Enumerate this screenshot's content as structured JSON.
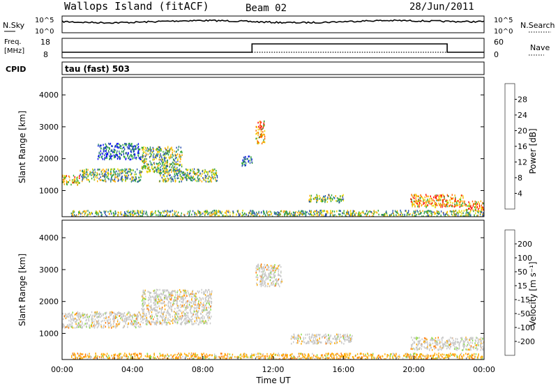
{
  "header": {
    "title": "Wallops Island (fitACF)",
    "beam": "Beam 02",
    "date": "28/Jun/2011"
  },
  "chart_data": [
    {
      "type": "line",
      "panel": "noise",
      "left_label": "N.Sky",
      "right_label": "N.Search",
      "left_ticks": [
        "10^5",
        "10^0"
      ],
      "right_ticks": [
        "10^5",
        "10^0"
      ]
    },
    {
      "type": "line",
      "panel": "frequency",
      "left_label_lines": [
        "Freq.",
        "[MHz]"
      ],
      "right_label": "Nave",
      "left_ticks": [
        "18",
        "8"
      ],
      "right_ticks": [
        "60",
        "0"
      ],
      "freq_steps_hours": [
        [
          0,
          10.8,
          "low"
        ],
        [
          10.8,
          21.9,
          "high"
        ],
        [
          21.9,
          24,
          "low"
        ]
      ]
    },
    {
      "type": "text",
      "panel": "cpid",
      "label": "CPID",
      "program": "tau (fast) 503"
    },
    {
      "type": "heatmap",
      "panel": "power",
      "ylabel": "Slant Range [km]",
      "ylim": [
        180,
        4550
      ],
      "yticks": [
        "1000",
        "2000",
        "3000",
        "4000"
      ],
      "colorbar_label": "Power [dB]",
      "colorbar_ticks": [
        "28",
        "24",
        "20",
        "16",
        "12",
        "8",
        "4"
      ],
      "colorbar_colors": [
        "#ff0000",
        "#ff6600",
        "#ffaa00",
        "#e8d800",
        "#33aa33",
        "#2f8f6f",
        "#2a50b0",
        "#0000ff"
      ],
      "echo_regions": [
        {
          "t": [
            0.0,
            1.0
          ],
          "r": [
            1200,
            1500
          ],
          "level": "high"
        },
        {
          "t": [
            1.0,
            4.5
          ],
          "r": [
            1300,
            1700
          ],
          "level": "mid"
        },
        {
          "t": [
            2.0,
            4.5
          ],
          "r": [
            2000,
            2500
          ],
          "level": "low"
        },
        {
          "t": [
            4.5,
            6.8
          ],
          "r": [
            1600,
            2400
          ],
          "level": "mid"
        },
        {
          "t": [
            5.5,
            8.8
          ],
          "r": [
            1300,
            1700
          ],
          "level": "mid"
        },
        {
          "t": [
            11.0,
            11.5
          ],
          "r": [
            2500,
            3200
          ],
          "level": "high"
        },
        {
          "t": [
            10.2,
            10.8
          ],
          "r": [
            1800,
            2100
          ],
          "level": "low"
        },
        {
          "t": [
            14.0,
            16.0
          ],
          "r": [
            650,
            900
          ],
          "level": "mid"
        },
        {
          "t": [
            19.8,
            22.8
          ],
          "r": [
            500,
            900
          ],
          "level": "high"
        },
        {
          "t": [
            22.8,
            24.0
          ],
          "r": [
            400,
            700
          ],
          "level": "high"
        },
        {
          "t": [
            0.5,
            24.0
          ],
          "r": [
            200,
            400
          ],
          "level": "mid"
        }
      ]
    },
    {
      "type": "heatmap",
      "panel": "velocity",
      "ylabel": "Slant Range [km]",
      "ylim": [
        180,
        4550
      ],
      "yticks": [
        "1000",
        "2000",
        "3000",
        "4000"
      ],
      "xlabel": "Time UT",
      "xticks": [
        "00:00",
        "04:00",
        "08:00",
        "12:00",
        "16:00",
        "20:00",
        "00:00"
      ],
      "colorbar_label": "Velocity [m s⁻¹]",
      "colorbar_ticks": [
        "200",
        "100",
        "50",
        "15",
        "-15",
        "-50",
        "-100",
        "-200"
      ],
      "colorbar_colors": [
        "#2233cc",
        "#2a7a5a",
        "#44aa44",
        "#88dd44",
        "#c8c8c8",
        "#ffaa00",
        "#ff7700",
        "#ff3300",
        "#ee0000"
      ],
      "echo_regions": [
        {
          "t": [
            0.0,
            4.5
          ],
          "r": [
            1200,
            1700
          ],
          "level": "grey"
        },
        {
          "t": [
            4.5,
            8.5
          ],
          "r": [
            1300,
            2400
          ],
          "level": "grey"
        },
        {
          "t": [
            11.0,
            12.5
          ],
          "r": [
            2500,
            3200
          ],
          "level": "grey"
        },
        {
          "t": [
            13.0,
            16.5
          ],
          "r": [
            700,
            1000
          ],
          "level": "grey"
        },
        {
          "t": [
            19.8,
            24.0
          ],
          "r": [
            500,
            900
          ],
          "level": "grey"
        },
        {
          "t": [
            0.5,
            24.0
          ],
          "r": [
            200,
            400
          ],
          "level": "orange"
        }
      ]
    }
  ]
}
